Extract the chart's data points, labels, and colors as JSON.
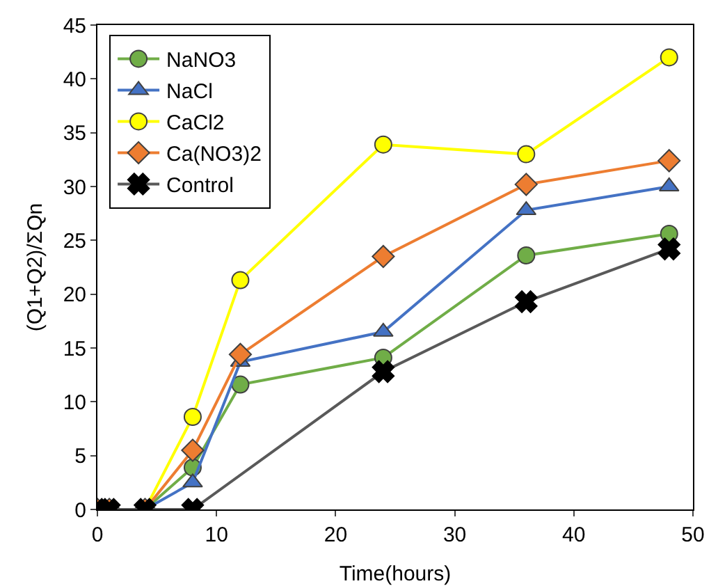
{
  "chart_data": {
    "type": "line",
    "xlabel": "Time(hours)",
    "ylabel": "(Q1+Q2)/ΣQn",
    "x": [
      0,
      1,
      4,
      8,
      12,
      24,
      36,
      48
    ],
    "series": [
      {
        "name": "NaNO3",
        "color": "#70ad47",
        "marker": "circle",
        "values": [
          0,
          0,
          0,
          3.9,
          11.6,
          14.1,
          23.6,
          25.6
        ]
      },
      {
        "name": "NaCl",
        "color": "#4472c4",
        "marker": "triangle",
        "values": [
          0,
          0,
          0,
          2.5,
          13.7,
          16.5,
          27.8,
          30
        ]
      },
      {
        "name": "CaCl2",
        "color": "#ffff00",
        "marker": "circle",
        "values": [
          0,
          0,
          0,
          8.6,
          21.3,
          33.9,
          33,
          42
        ]
      },
      {
        "name": "Ca(NO3)2",
        "color": "#ed7d31",
        "marker": "diamond",
        "values": [
          0,
          0,
          0,
          5.5,
          14.4,
          23.5,
          30.2,
          32.4
        ]
      },
      {
        "name": "Control",
        "color": "#595959",
        "marker": "cross",
        "x": [
          0,
          1,
          4,
          8,
          24,
          36,
          48
        ],
        "values": [
          0,
          0,
          0,
          0,
          12.8,
          19.3,
          24.2
        ]
      }
    ],
    "xlim": [
      0,
      50
    ],
    "xticks": [
      0,
      10,
      20,
      30,
      40,
      50
    ],
    "ylim": [
      0,
      45
    ],
    "yticks": [
      0,
      5,
      10,
      15,
      20,
      25,
      30,
      35,
      40,
      45
    ],
    "grid": false,
    "legend": "top left"
  }
}
